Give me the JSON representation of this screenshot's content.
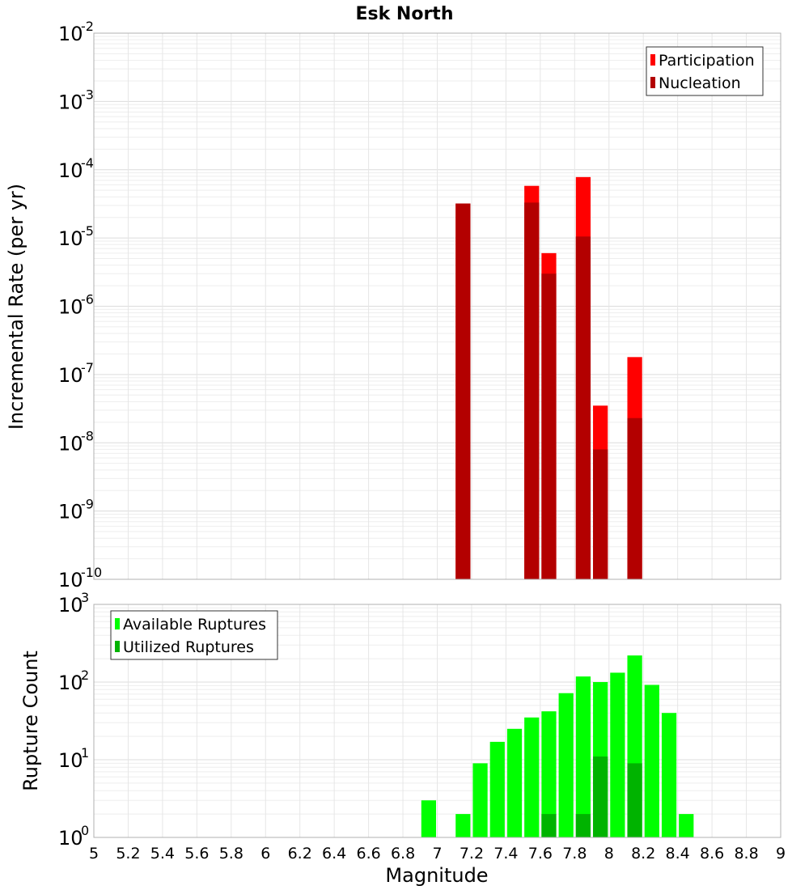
{
  "chart_data": [
    {
      "type": "bar",
      "title": "Esk North",
      "ylabel": "Incremental Rate (per yr)",
      "xlabel": "",
      "yscale": "log",
      "ylim_exp": [
        -10,
        -2
      ],
      "xlim": [
        5,
        9
      ],
      "bin_width": 0.1,
      "grid": true,
      "legend_position": "top-right",
      "series": [
        {
          "name": "Participation",
          "color": "#ff0000",
          "points": [
            {
              "x": 7.15,
              "y": 3.2e-05
            },
            {
              "x": 7.55,
              "y": 5.8e-05
            },
            {
              "x": 7.65,
              "y": 6e-06
            },
            {
              "x": 7.85,
              "y": 7.8e-05
            },
            {
              "x": 7.95,
              "y": 3.5e-08
            },
            {
              "x": 8.15,
              "y": 1.8e-07
            }
          ]
        },
        {
          "name": "Nucleation",
          "color": "#b30000",
          "points": [
            {
              "x": 7.15,
              "y": 3.2e-05
            },
            {
              "x": 7.55,
              "y": 3.3e-05
            },
            {
              "x": 7.65,
              "y": 3e-06
            },
            {
              "x": 7.85,
              "y": 1.05e-05
            },
            {
              "x": 7.95,
              "y": 8e-09
            },
            {
              "x": 8.15,
              "y": 2.3e-08
            }
          ]
        }
      ]
    },
    {
      "type": "bar",
      "title": "",
      "ylabel": "Rupture Count",
      "xlabel": "Magnitude",
      "yscale": "log",
      "ylim_exp": [
        0,
        3
      ],
      "xlim": [
        5,
        9
      ],
      "bin_width": 0.1,
      "grid": true,
      "legend_position": "top-left",
      "x_ticks": [
        "5",
        "5.2",
        "5.4",
        "5.6",
        "5.8",
        "6",
        "6.2",
        "6.4",
        "6.6",
        "6.8",
        "7",
        "7.2",
        "7.4",
        "7.6",
        "7.8",
        "8",
        "8.2",
        "8.4",
        "8.6",
        "8.8",
        "9"
      ],
      "series": [
        {
          "name": "Available Ruptures",
          "color": "#00ff00",
          "points": [
            {
              "x": 6.95,
              "y": 3
            },
            {
              "x": 7.05,
              "y": 1
            },
            {
              "x": 7.15,
              "y": 2
            },
            {
              "x": 7.25,
              "y": 9
            },
            {
              "x": 7.35,
              "y": 17
            },
            {
              "x": 7.45,
              "y": 25
            },
            {
              "x": 7.55,
              "y": 35
            },
            {
              "x": 7.65,
              "y": 42
            },
            {
              "x": 7.75,
              "y": 72
            },
            {
              "x": 7.85,
              "y": 118
            },
            {
              "x": 7.95,
              "y": 100
            },
            {
              "x": 8.05,
              "y": 132
            },
            {
              "x": 8.15,
              "y": 220
            },
            {
              "x": 8.25,
              "y": 92
            },
            {
              "x": 8.35,
              "y": 40
            },
            {
              "x": 8.45,
              "y": 2
            }
          ]
        },
        {
          "name": "Utilized Ruptures",
          "color": "#00b300",
          "points": [
            {
              "x": 7.15,
              "y": 1
            },
            {
              "x": 7.55,
              "y": 1
            },
            {
              "x": 7.65,
              "y": 2
            },
            {
              "x": 7.85,
              "y": 2
            },
            {
              "x": 7.95,
              "y": 11
            },
            {
              "x": 8.05,
              "y": 1
            },
            {
              "x": 8.15,
              "y": 9
            }
          ]
        }
      ]
    }
  ]
}
